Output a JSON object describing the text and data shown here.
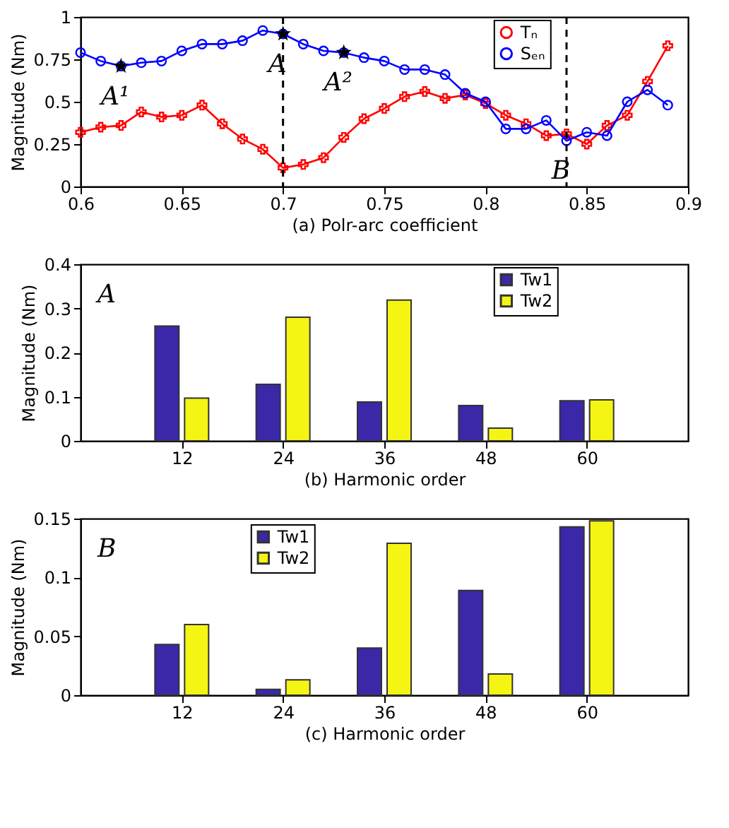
{
  "chart_data": [
    {
      "type": "line",
      "xlabel": "(a)   Polr-arc coefficient",
      "ylabel": "Magnitude (Nm)",
      "x": [
        0.6,
        0.61,
        0.62,
        0.63,
        0.64,
        0.65,
        0.66,
        0.67,
        0.68,
        0.69,
        0.7,
        0.71,
        0.72,
        0.73,
        0.74,
        0.75,
        0.76,
        0.77,
        0.78,
        0.79,
        0.8,
        0.81,
        0.82,
        0.83,
        0.84,
        0.85,
        0.86,
        0.87,
        0.88,
        0.89
      ],
      "series": [
        {
          "name": "Tₙ",
          "color": "#ff0000",
          "marker": "cross",
          "values": [
            0.32,
            0.35,
            0.36,
            0.44,
            0.41,
            0.42,
            0.48,
            0.37,
            0.28,
            0.22,
            0.11,
            0.13,
            0.17,
            0.29,
            0.4,
            0.46,
            0.53,
            0.56,
            0.52,
            0.54,
            0.49,
            0.42,
            0.37,
            0.3,
            0.31,
            0.25,
            0.36,
            0.42,
            0.62,
            0.83
          ]
        },
        {
          "name": "Sₑₙ",
          "color": "#0000ff",
          "marker": "circle",
          "values": [
            0.79,
            0.74,
            0.71,
            0.73,
            0.74,
            0.8,
            0.84,
            0.84,
            0.86,
            0.92,
            0.9,
            0.84,
            0.8,
            0.79,
            0.76,
            0.74,
            0.69,
            0.69,
            0.66,
            0.55,
            0.5,
            0.34,
            0.34,
            0.39,
            0.27,
            0.32,
            0.3,
            0.5,
            0.57,
            0.48
          ]
        },
        {
          "type": "scatter",
          "color": "#000000",
          "marker": "star",
          "x": [
            0.62,
            0.7,
            0.73
          ],
          "values": [
            0.71,
            0.9,
            0.79
          ]
        }
      ],
      "xlim": [
        0.6,
        0.9
      ],
      "xticks": [
        0.6,
        0.65,
        0.7,
        0.75,
        0.8,
        0.85,
        0.9
      ],
      "ylim": [
        0,
        1
      ],
      "yticks": [
        0,
        0.25,
        0.5,
        0.75,
        1
      ],
      "ref_lines": [
        {
          "axis": "x",
          "value": 0.7,
          "color": "#000000",
          "line_style": "dashed"
        },
        {
          "axis": "x",
          "value": 0.84,
          "color": "#000000",
          "line_style": "dashed"
        }
      ],
      "annotations": [
        {
          "text": "A¹",
          "x": 0.62,
          "y": 0.71
        },
        {
          "text": "A",
          "x": 0.7,
          "y": 0.9
        },
        {
          "text": "A²",
          "x": 0.73,
          "y": 0.79
        },
        {
          "text": "B",
          "x": 0.84,
          "y": 0.27
        }
      ],
      "legend": "top right",
      "grid": false
    },
    {
      "type": "bar",
      "xlabel": "(b)    Harmonic order",
      "ylabel": "Magnitude (Nm)",
      "x": [
        12,
        24,
        36,
        48,
        60
      ],
      "series": [
        {
          "name": "Tw1",
          "color": "#3a28a8",
          "values": [
            0.26,
            0.128,
            0.088,
            0.08,
            0.091
          ]
        },
        {
          "name": "Tw2",
          "color": "#f5f514",
          "values": [
            0.097,
            0.28,
            0.319,
            0.029,
            0.093
          ]
        }
      ],
      "xlim": [
        0,
        72
      ],
      "xticks": [
        12,
        24,
        36,
        48,
        60
      ],
      "ylim": [
        0,
        0.4
      ],
      "yticks": [
        0,
        0.1,
        0.2,
        0.3,
        0.4
      ],
      "annotations": [
        "A"
      ],
      "legend": "top right",
      "grid": false
    },
    {
      "type": "bar",
      "xlabel": "(c)    Harmonic order",
      "ylabel": "Magnitude (Nm)",
      "x": [
        12,
        24,
        36,
        48,
        60
      ],
      "series": [
        {
          "name": "Tw1",
          "color": "#3a28a8",
          "values": [
            0.043,
            0.005,
            0.04,
            0.089,
            0.143
          ]
        },
        {
          "name": "Tw2",
          "color": "#f5f514",
          "values": [
            0.06,
            0.013,
            0.129,
            0.018,
            0.148
          ]
        }
      ],
      "xlim": [
        0,
        72
      ],
      "xticks": [
        12,
        24,
        36,
        48,
        60
      ],
      "ylim": [
        0,
        0.15
      ],
      "yticks": [
        0,
        0.05,
        0.1,
        0.15
      ],
      "annotations": [
        "B"
      ],
      "legend": "top",
      "grid": false
    }
  ]
}
